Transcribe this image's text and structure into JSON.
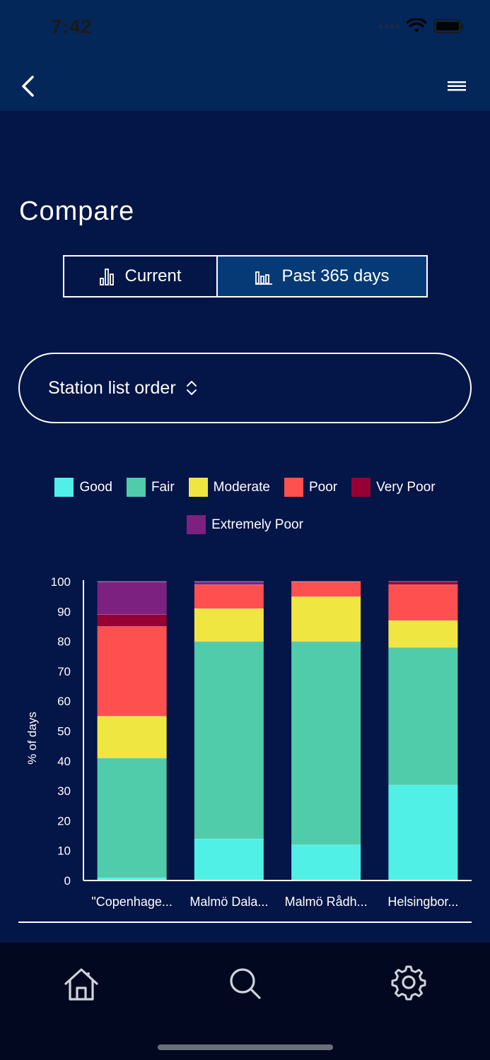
{
  "status_bar": {
    "time": "7:42"
  },
  "header": {
    "back_icon": "chevron-left-icon",
    "menu_icon": "hamburger-menu-icon"
  },
  "page": {
    "title": "Compare"
  },
  "segment": {
    "current_label": "Current",
    "past_label": "Past 365 days",
    "selected": "Past 365 days"
  },
  "sort": {
    "label": "Station list order",
    "icon": "sort-updown-icon"
  },
  "legend": [
    {
      "label": "Good",
      "color": "#50f0e6"
    },
    {
      "label": "Fair",
      "color": "#50ccaa"
    },
    {
      "label": "Moderate",
      "color": "#f0e641"
    },
    {
      "label": "Poor",
      "color": "#ff5050"
    },
    {
      "label": "Very Poor",
      "color": "#960032"
    },
    {
      "label": "Extremely Poor",
      "color": "#7d2181"
    }
  ],
  "chart_data": {
    "type": "bar",
    "stacked": true,
    "categories": [
      "\"Copenhage...",
      "Malmö Dala...",
      "Malmö Rådh...",
      "Helsingbor..."
    ],
    "series": [
      {
        "name": "Good",
        "values": [
          1,
          14,
          12,
          32
        ]
      },
      {
        "name": "Fair",
        "values": [
          40,
          66,
          68,
          46
        ]
      },
      {
        "name": "Moderate",
        "values": [
          14,
          11,
          15,
          9
        ]
      },
      {
        "name": "Poor",
        "values": [
          30,
          8,
          5,
          12
        ]
      },
      {
        "name": "Very Poor",
        "values": [
          4,
          0,
          0,
          1
        ]
      },
      {
        "name": "Extremely Poor",
        "values": [
          11,
          1,
          0,
          0
        ]
      }
    ],
    "ylabel": "% of days",
    "ylim": [
      0,
      100
    ],
    "yticks": [
      0,
      10,
      20,
      30,
      40,
      50,
      60,
      70,
      80,
      90,
      100
    ],
    "legend_position": "top"
  },
  "tabbar": {
    "items": [
      {
        "name": "home",
        "icon": "home-icon"
      },
      {
        "name": "search",
        "icon": "search-icon"
      },
      {
        "name": "settings",
        "icon": "gear-icon"
      }
    ]
  }
}
